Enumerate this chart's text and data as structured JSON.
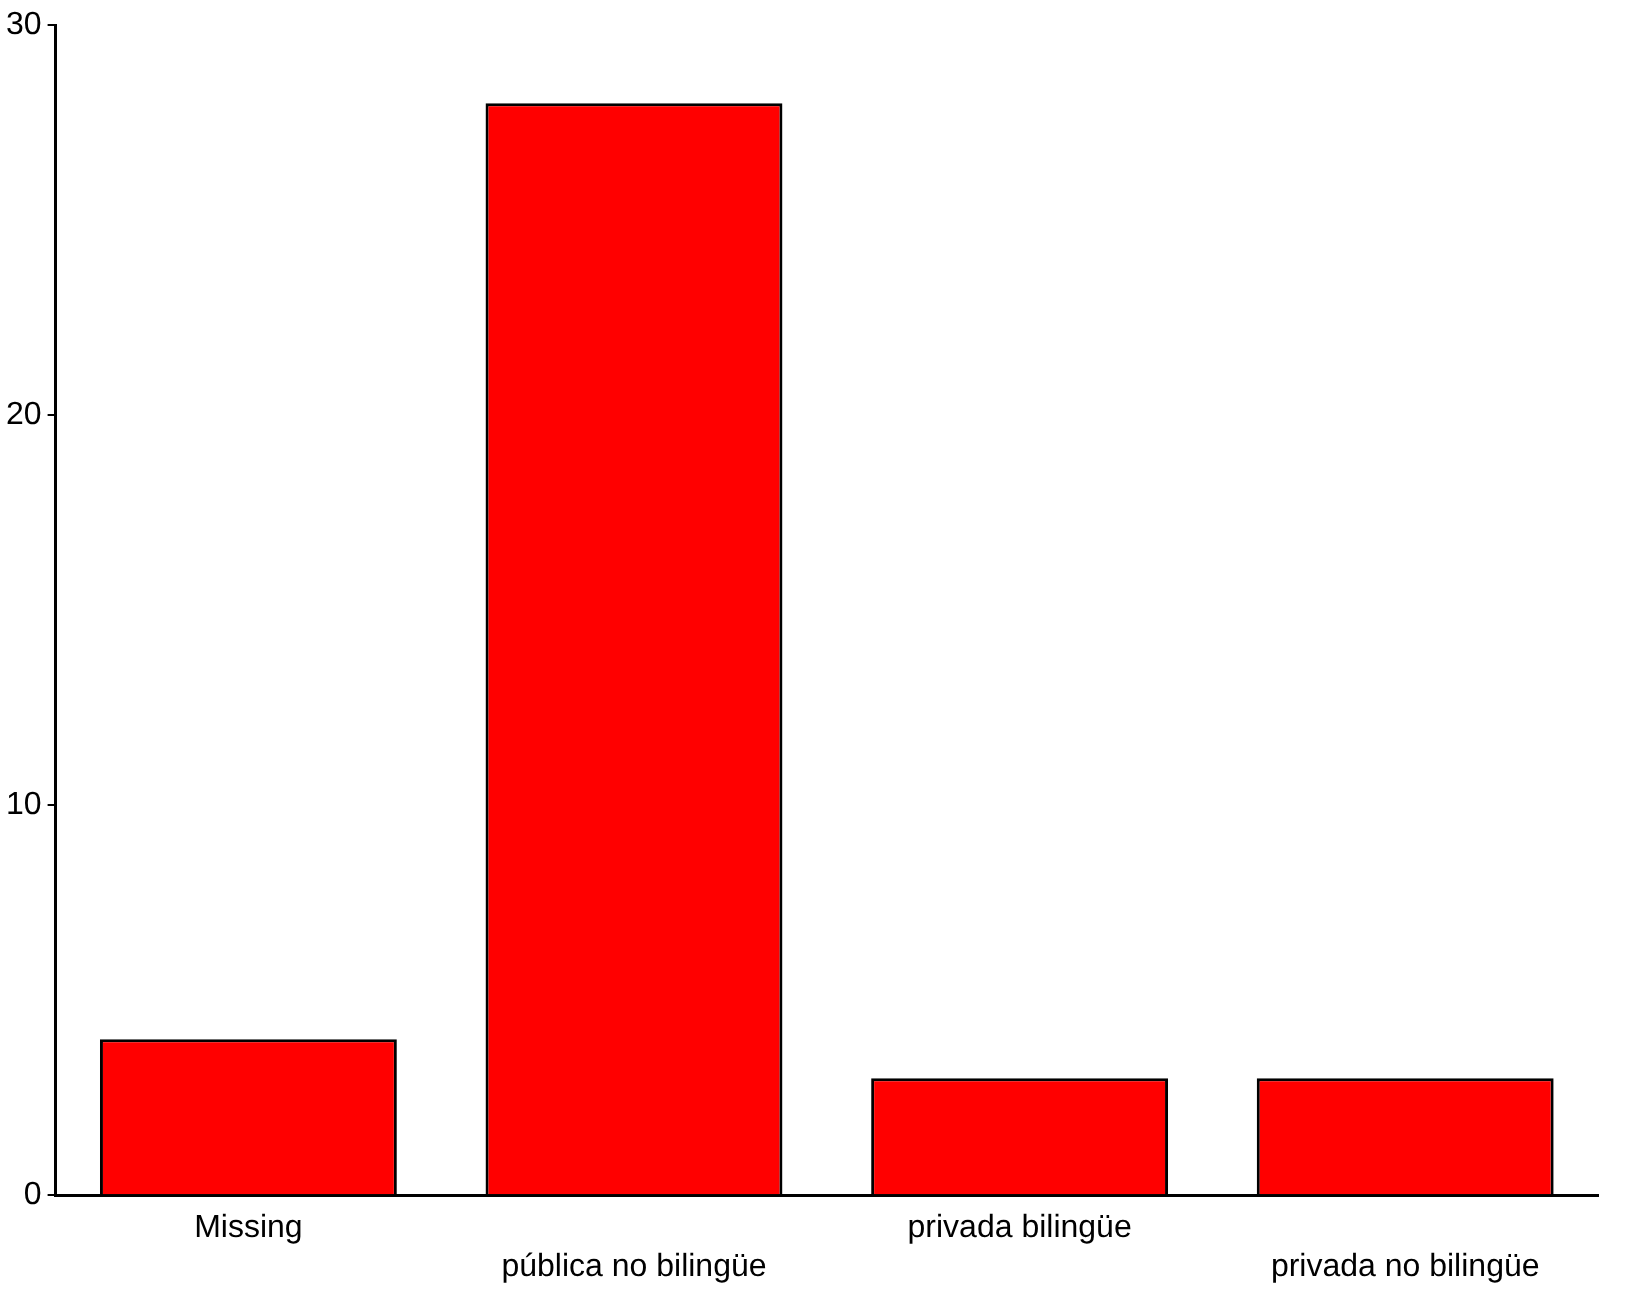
{
  "chart_data": {
    "type": "bar",
    "categories": [
      "Missing",
      "pública no bilingüe",
      "privada bilingüe",
      "privada no bilingüe"
    ],
    "values": [
      4,
      28,
      3,
      3
    ],
    "color": "#ff0000",
    "ylim": [
      0,
      30
    ],
    "yticks": [
      0,
      10,
      20,
      30
    ],
    "grid": false,
    "legend": false
  }
}
